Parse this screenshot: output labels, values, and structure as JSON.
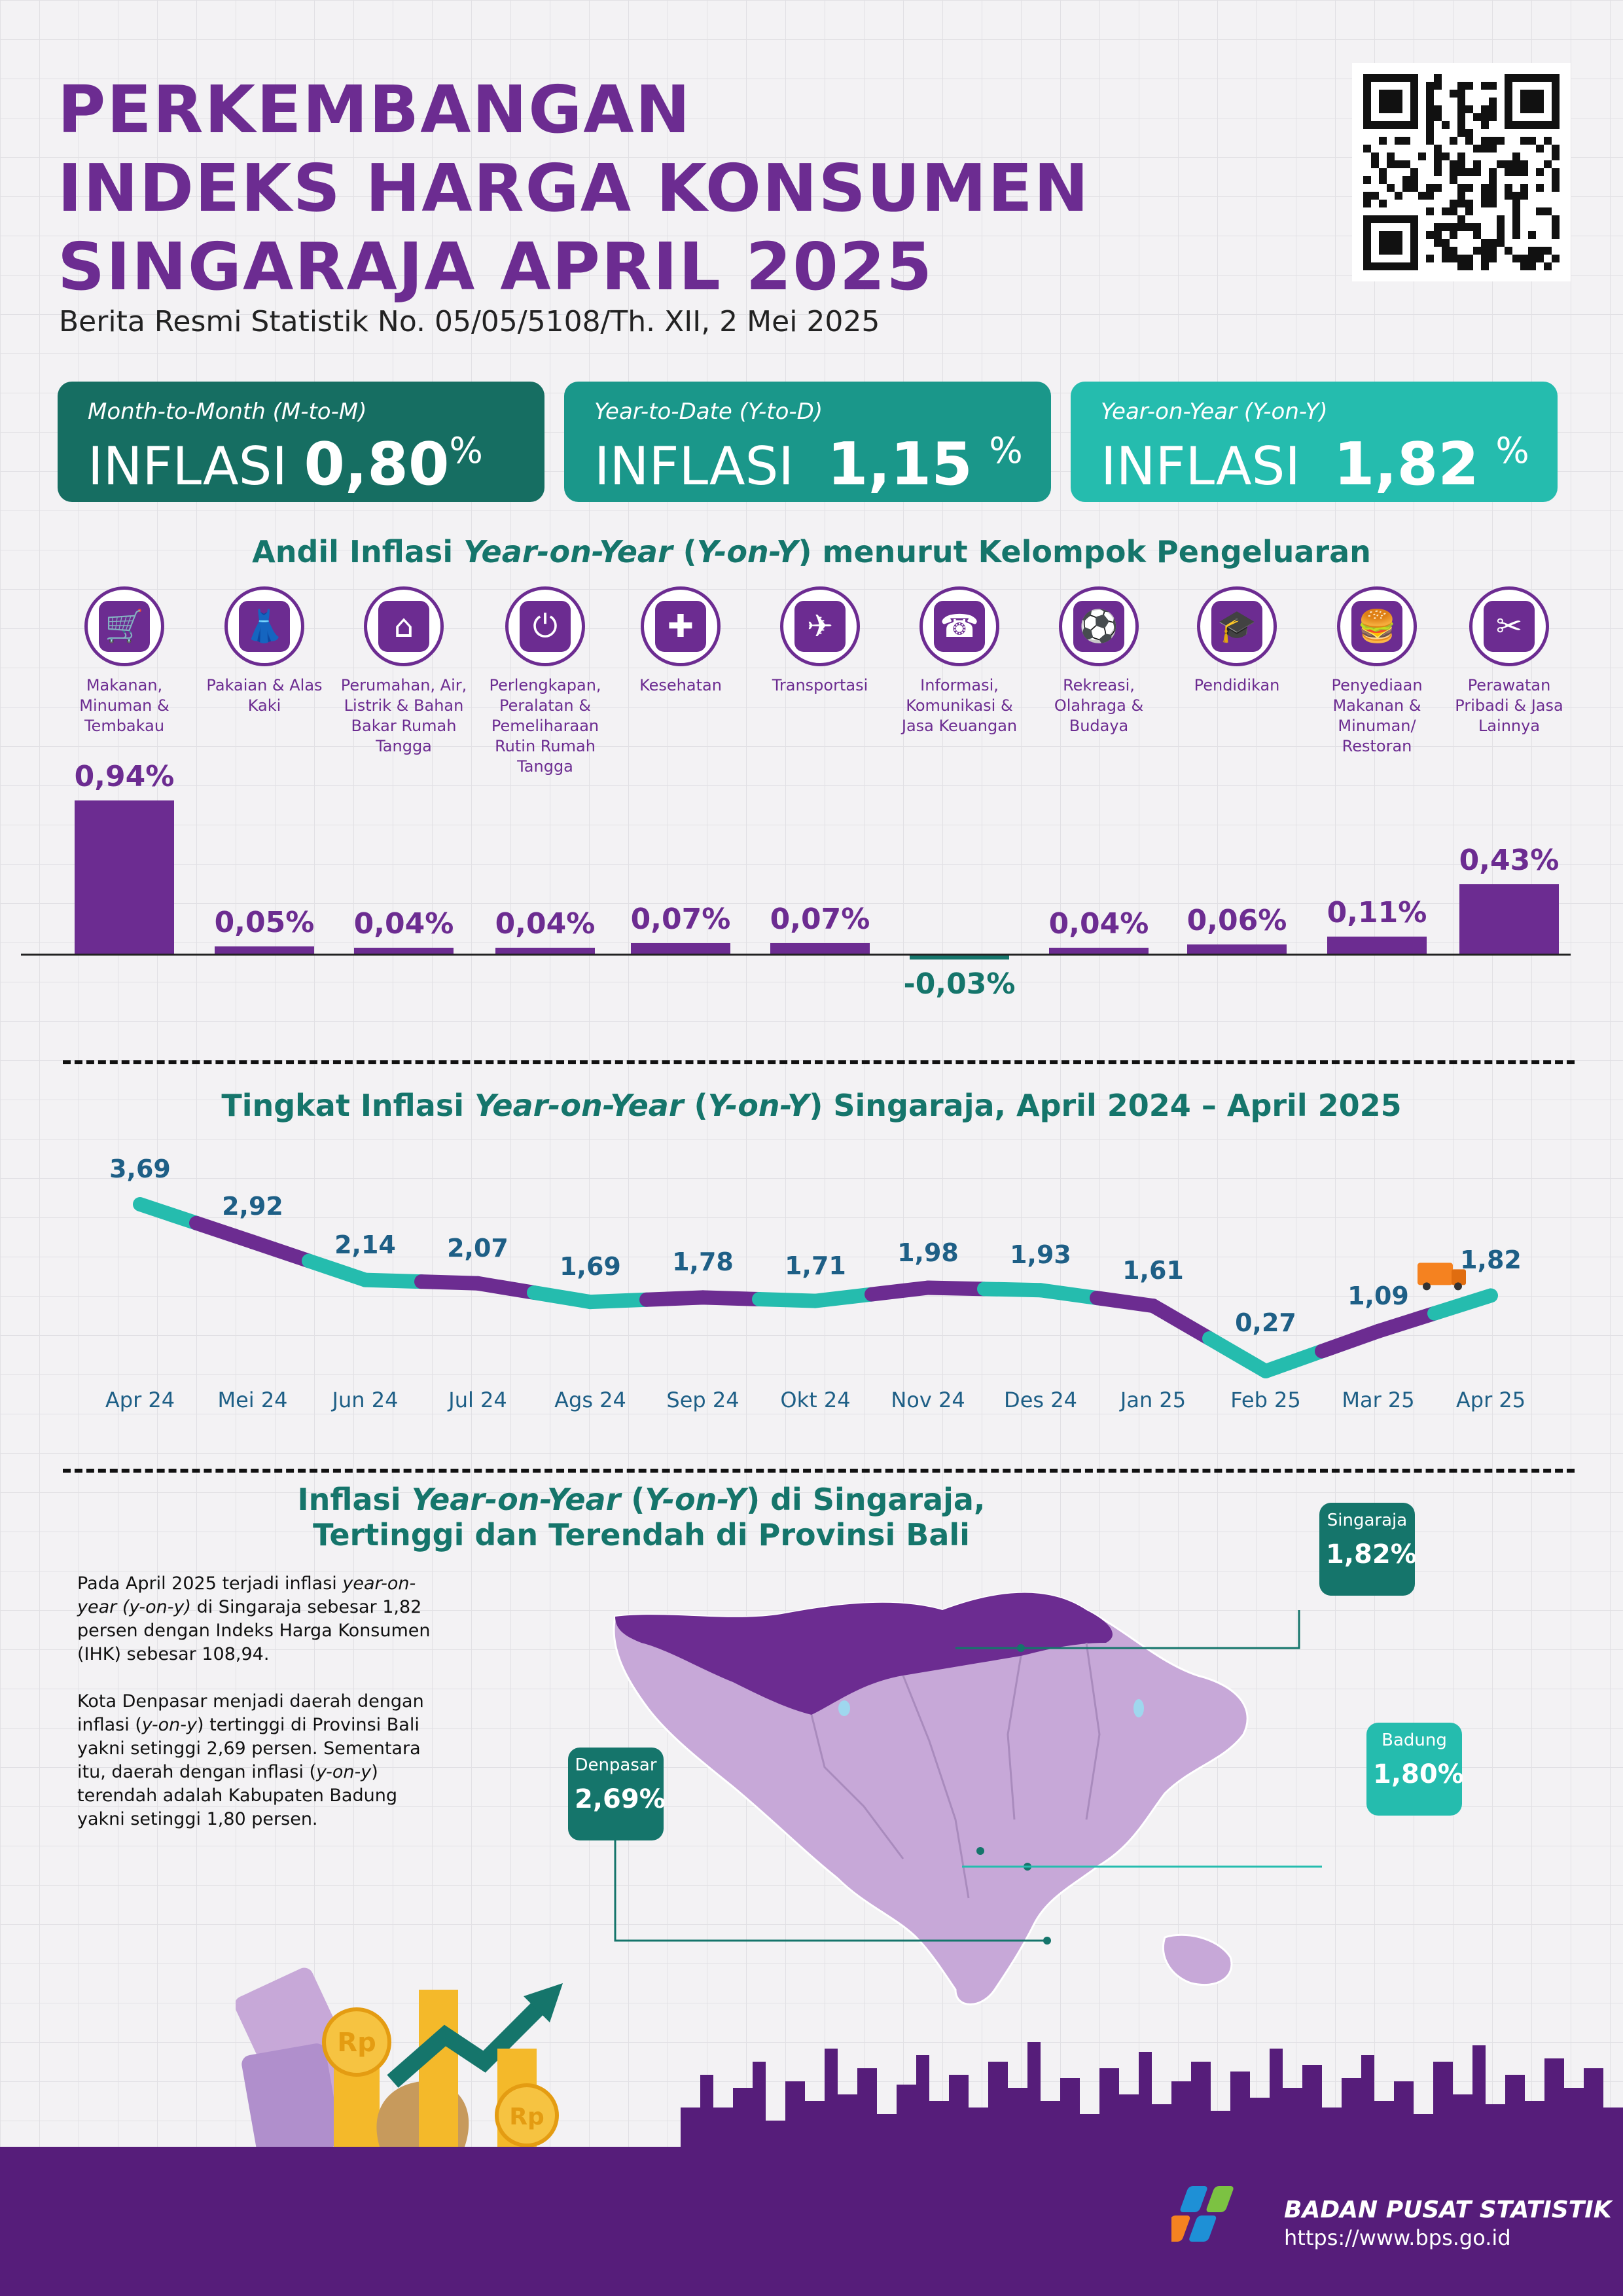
{
  "header": {
    "title_line1": "PERKEMBANGAN",
    "title_line2": "INDEKS HARGA KONSUMEN",
    "title_line3": "SINGARAJA APRIL 2025",
    "subtitle": "Berita Resmi Statistik No. 05/05/5108/Th. XII, 2 Mei 2025"
  },
  "cards": [
    {
      "label": "Month-to-Month (M-to-M)",
      "word": "INFLASI",
      "value": "0,80",
      "unit": "%",
      "color": "#166e62"
    },
    {
      "label": "Year-to-Date (Y-to-D)",
      "word": "INFLASI",
      "value": "1,15",
      "unit": "%",
      "color": "#1a978a"
    },
    {
      "label": "Year-on-Year (Y-on-Y)",
      "word": "INFLASI",
      "value": "1,82",
      "unit": "%",
      "color": "#25bcae"
    }
  ],
  "andil_section": {
    "title_pre": "Andil Inflasi ",
    "title_it1": "Year-on-Year",
    "title_mid": " (",
    "title_it2": "Y-on-Y",
    "title_post": ") menurut Kelompok Pengeluaran"
  },
  "categories": [
    {
      "icon": "food-basket-icon",
      "name": "Makanan, Minuman & Tembakau"
    },
    {
      "icon": "dress-icon",
      "name": "Pakaian & Alas Kaki"
    },
    {
      "icon": "house-icon",
      "name": "Perumahan, Air, Listrik & Bahan Bakar Rumah Tangga"
    },
    {
      "icon": "plug-icon",
      "name": "Perlengkapan, Peralatan & Pemeliharaan Rutin Rumah Tangga"
    },
    {
      "icon": "medical-kit-icon",
      "name": "Kesehatan"
    },
    {
      "icon": "airplane-icon",
      "name": "Transportasi"
    },
    {
      "icon": "smartphone-icon",
      "name": "Informasi, Komunikasi & Jasa Keuangan"
    },
    {
      "icon": "soccer-player-icon",
      "name": "Rekreasi, Olahraga & Budaya"
    },
    {
      "icon": "graduation-cap-icon",
      "name": "Pendidikan"
    },
    {
      "icon": "burger-drink-icon",
      "name": "Penyediaan Makanan & Minuman/ Restoran"
    },
    {
      "icon": "scissors-comb-icon",
      "name": "Perawatan Pribadi & Jasa Lainnya"
    }
  ],
  "chart_data": [
    {
      "type": "bar",
      "categories": [
        "Makanan, Minuman & Tembakau",
        "Pakaian & Alas Kaki",
        "Perumahan, Air, Listrik & Bahan Bakar Rumah Tangga",
        "Perlengkapan, Peralatan & Pemeliharaan Rutin Rumah Tangga",
        "Kesehatan",
        "Transportasi",
        "Informasi, Komunikasi & Jasa Keuangan",
        "Rekreasi, Olahraga & Budaya",
        "Pendidikan",
        "Penyediaan Makanan & Minuman/ Restoran",
        "Perawatan Pribadi & Jasa Lainnya"
      ],
      "values": [
        0.94,
        0.05,
        0.04,
        0.04,
        0.07,
        0.07,
        -0.03,
        0.04,
        0.06,
        0.11,
        0.43
      ],
      "labels": [
        "0,94%",
        "0,05%",
        "0,04%",
        "0,04%",
        "0,07%",
        "0,07%",
        "-0,03%",
        "0,04%",
        "0,06%",
        "0,11%",
        "0,43%"
      ],
      "title": "Andil Inflasi Year-on-Year (Y-on-Y) menurut Kelompok Pengeluaran",
      "colors": {
        "positive": "#6c2c91",
        "negative": "#15756b"
      }
    },
    {
      "type": "line",
      "title": "Tingkat Inflasi Year-on-Year (Y-on-Y) Singaraja, April 2024 – April 2025",
      "x": [
        "Apr 24",
        "Mei 24",
        "Jun 24",
        "Jul 24",
        "Ags 24",
        "Sep 24",
        "Okt 24",
        "Nov 24",
        "Des 24",
        "Jan 25",
        "Feb 25",
        "Mar 25",
        "Apr 25"
      ],
      "values": [
        3.69,
        2.92,
        2.14,
        2.07,
        1.69,
        1.78,
        1.71,
        1.98,
        1.93,
        1.61,
        0.27,
        1.09,
        1.82
      ],
      "labels": [
        "3,69",
        "2,92",
        "2,14",
        "2,07",
        "1,69",
        "1,78",
        "1,71",
        "1,98",
        "1,93",
        "1,61",
        "0,27",
        "1,09",
        "1,82"
      ],
      "colors": {
        "teal": "#25bcae",
        "purple": "#6c2c91",
        "label": "#1e5f86"
      }
    }
  ],
  "line_section": {
    "title_pre": "Tingkat Inflasi ",
    "title_it1": "Year-on-Year",
    "title_mid": " (",
    "title_it2": "Y-on-Y",
    "title_post": ") Singaraja, April 2024 – April 2025"
  },
  "map_section": {
    "title_pre": "Inflasi ",
    "title_it1": "Year-on-Year",
    "title_mid": " (",
    "title_it2": "Y-on-Y",
    "title_post": ") di Singaraja,",
    "title_line2": "Tertinggi dan Terendah di Provinsi Bali",
    "para1_a": "Pada April 2025 terjadi inflasi ",
    "para1_b": "year-on-year (y-on-y)",
    "para1_c": " di Singaraja sebesar 1,82 persen dengan Indeks Harga Konsumen (IHK) sebesar 108,94.",
    "para2_a": "Kota Denpasar menjadi daerah dengan inflasi (",
    "para2_b": "y-on-y",
    "para2_c": ") tertinggi di Provinsi Bali yakni setinggi 2,69 persen. Sementara itu, daerah dengan inflasi (",
    "para2_d": "y-on-y",
    "para2_e": ") terendah adalah Kabupaten Badung yakni setinggi 1,80 persen.",
    "callouts": [
      {
        "name": "Singaraja",
        "value": "1,82%",
        "color": "#15756b"
      },
      {
        "name": "Denpasar",
        "value": "2,69%",
        "color": "#15756b"
      },
      {
        "name": "Badung",
        "value": "1,80%",
        "color": "#25bcae"
      }
    ]
  },
  "footer": {
    "org": "BADAN PUSAT STATISTIK",
    "url": "https://www.bps.go.id"
  }
}
